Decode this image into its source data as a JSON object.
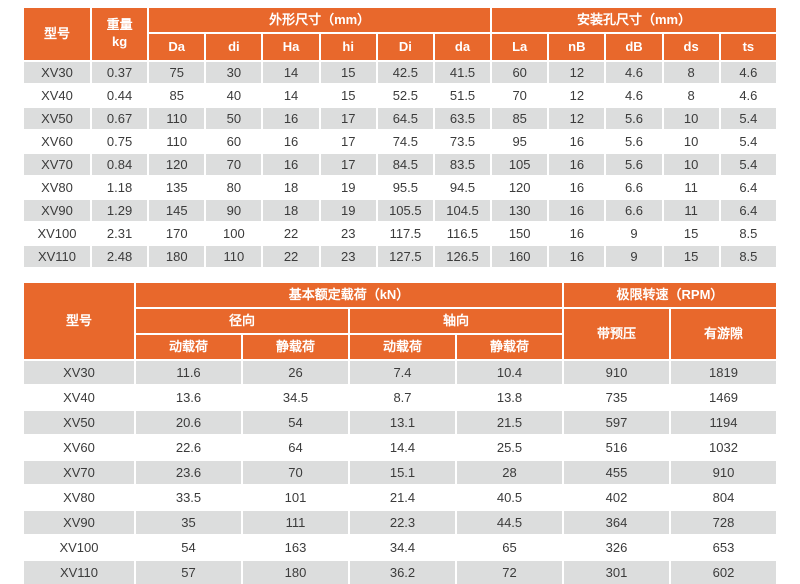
{
  "colors": {
    "header_orange": "#e8682c",
    "row_gray": "#dcdddd",
    "header_text": "#ffffff",
    "data_text": "#3b3b3b"
  },
  "dimensions_table": {
    "headers": {
      "model": "型号",
      "weight_line1": "重量",
      "weight_line2": "kg",
      "outline_group": "外形尺寸（mm）",
      "outline_cols": [
        "Da",
        "di",
        "Ha",
        "hi",
        "Di",
        "da"
      ],
      "mounting_group": "安装孔尺寸（mm）",
      "mounting_cols": [
        "La",
        "nB",
        "dB",
        "ds",
        "ts"
      ]
    },
    "rows": [
      [
        "XV30",
        "0.37",
        "75",
        "30",
        "14",
        "15",
        "42.5",
        "41.5",
        "60",
        "12",
        "4.6",
        "8",
        "4.6"
      ],
      [
        "XV40",
        "0.44",
        "85",
        "40",
        "14",
        "15",
        "52.5",
        "51.5",
        "70",
        "12",
        "4.6",
        "8",
        "4.6"
      ],
      [
        "XV50",
        "0.67",
        "110",
        "50",
        "16",
        "17",
        "64.5",
        "63.5",
        "85",
        "12",
        "5.6",
        "10",
        "5.4"
      ],
      [
        "XV60",
        "0.75",
        "110",
        "60",
        "16",
        "17",
        "74.5",
        "73.5",
        "95",
        "16",
        "5.6",
        "10",
        "5.4"
      ],
      [
        "XV70",
        "0.84",
        "120",
        "70",
        "16",
        "17",
        "84.5",
        "83.5",
        "105",
        "16",
        "5.6",
        "10",
        "5.4"
      ],
      [
        "XV80",
        "1.18",
        "135",
        "80",
        "18",
        "19",
        "95.5",
        "94.5",
        "120",
        "16",
        "6.6",
        "11",
        "6.4"
      ],
      [
        "XV90",
        "1.29",
        "145",
        "90",
        "18",
        "19",
        "105.5",
        "104.5",
        "130",
        "16",
        "6.6",
        "11",
        "6.4"
      ],
      [
        "XV100",
        "2.31",
        "170",
        "100",
        "22",
        "23",
        "117.5",
        "116.5",
        "150",
        "16",
        "9",
        "15",
        "8.5"
      ],
      [
        "XV110",
        "2.48",
        "180",
        "110",
        "22",
        "23",
        "127.5",
        "126.5",
        "160",
        "16",
        "9",
        "15",
        "8.5"
      ]
    ]
  },
  "load_table": {
    "headers": {
      "model": "型号",
      "load_group": "基本额定载荷（kN）",
      "radial": "径向",
      "axial": "轴向",
      "dynamic": "动载荷",
      "static": "静载荷",
      "speed_group": "极限转速（RPM）",
      "preload": "带预压",
      "clearance": "有游隙"
    },
    "rows": [
      [
        "XV30",
        "11.6",
        "26",
        "7.4",
        "10.4",
        "910",
        "1819"
      ],
      [
        "XV40",
        "13.6",
        "34.5",
        "8.7",
        "13.8",
        "735",
        "1469"
      ],
      [
        "XV50",
        "20.6",
        "54",
        "13.1",
        "21.5",
        "597",
        "1194"
      ],
      [
        "XV60",
        "22.6",
        "64",
        "14.4",
        "25.5",
        "516",
        "1032"
      ],
      [
        "XV70",
        "23.6",
        "70",
        "15.1",
        "28",
        "455",
        "910"
      ],
      [
        "XV80",
        "33.5",
        "101",
        "21.4",
        "40.5",
        "402",
        "804"
      ],
      [
        "XV90",
        "35",
        "111",
        "22.3",
        "44.5",
        "364",
        "728"
      ],
      [
        "XV100",
        "54",
        "163",
        "34.4",
        "65",
        "326",
        "653"
      ],
      [
        "XV110",
        "57",
        "180",
        "36.2",
        "72",
        "301",
        "602"
      ]
    ]
  }
}
